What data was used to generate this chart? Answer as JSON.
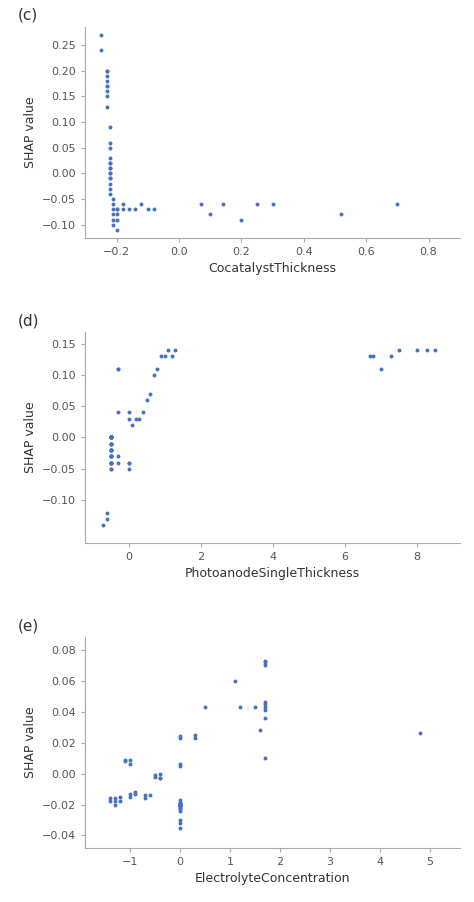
{
  "plot_c": {
    "label": "(c)",
    "xlabel": "CocatalystThickness",
    "ylabel": "SHAP value",
    "xlim": [
      -0.3,
      0.9
    ],
    "ylim": [
      -0.125,
      0.285
    ],
    "xticks": [
      -0.2,
      0.0,
      0.2,
      0.4,
      0.6,
      0.8
    ],
    "yticks": [
      -0.1,
      -0.05,
      0.0,
      0.05,
      0.1,
      0.15,
      0.2,
      0.25
    ],
    "x": [
      -0.25,
      -0.25,
      -0.23,
      -0.23,
      -0.23,
      -0.23,
      -0.23,
      -0.23,
      -0.23,
      -0.23,
      -0.23,
      -0.22,
      -0.22,
      -0.22,
      -0.22,
      -0.22,
      -0.22,
      -0.22,
      -0.22,
      -0.22,
      -0.22,
      -0.22,
      -0.22,
      -0.22,
      -0.22,
      -0.22,
      -0.21,
      -0.21,
      -0.21,
      -0.21,
      -0.21,
      -0.21,
      -0.2,
      -0.2,
      -0.2,
      -0.2,
      -0.2,
      -0.18,
      -0.18,
      -0.16,
      -0.14,
      -0.12,
      -0.1,
      -0.08,
      0.07,
      0.1,
      0.14,
      0.2,
      0.25,
      0.3,
      0.52,
      0.7
    ],
    "y": [
      0.24,
      0.27,
      0.2,
      0.2,
      0.19,
      0.18,
      0.17,
      0.17,
      0.16,
      0.15,
      0.13,
      0.09,
      0.06,
      0.05,
      0.03,
      0.02,
      0.02,
      0.01,
      0.01,
      0.0,
      0.0,
      -0.01,
      -0.01,
      -0.02,
      -0.03,
      -0.04,
      -0.05,
      -0.06,
      -0.07,
      -0.08,
      -0.09,
      -0.1,
      -0.07,
      -0.07,
      -0.08,
      -0.09,
      -0.11,
      -0.06,
      -0.07,
      -0.07,
      -0.07,
      -0.06,
      -0.07,
      -0.07,
      -0.06,
      -0.08,
      -0.06,
      -0.09,
      -0.06,
      -0.06,
      -0.08,
      -0.06
    ],
    "dot_color": "#4472C4",
    "dot_size": 8
  },
  "plot_d": {
    "label": "(d)",
    "xlabel": "PhotoanodeSingleThickness",
    "ylabel": "SHAP value",
    "xlim": [
      -1.2,
      9.2
    ],
    "ylim": [
      -0.168,
      0.168
    ],
    "xticks": [
      0,
      2,
      4,
      6,
      8
    ],
    "yticks": [
      -0.1,
      -0.05,
      0.0,
      0.05,
      0.1,
      0.15
    ],
    "x": [
      -0.7,
      -0.6,
      -0.6,
      -0.5,
      -0.5,
      -0.5,
      -0.5,
      -0.5,
      -0.5,
      -0.5,
      -0.5,
      -0.5,
      -0.5,
      -0.5,
      -0.5,
      -0.5,
      -0.5,
      -0.5,
      -0.5,
      -0.5,
      -0.5,
      -0.5,
      -0.5,
      -0.5,
      -0.5,
      -0.5,
      -0.5,
      -0.5,
      -0.5,
      -0.5,
      -0.5,
      -0.5,
      -0.5,
      -0.3,
      -0.3,
      -0.3,
      -0.3,
      -0.3,
      0.0,
      0.0,
      0.0,
      0.0,
      0.0,
      0.1,
      0.2,
      0.3,
      0.4,
      0.5,
      0.6,
      0.7,
      0.8,
      0.9,
      1.0,
      1.1,
      1.2,
      1.3,
      6.7,
      6.8,
      7.0,
      7.3,
      7.5,
      8.0,
      8.3,
      8.5
    ],
    "y": [
      -0.14,
      -0.13,
      -0.12,
      -0.05,
      -0.05,
      -0.04,
      -0.04,
      -0.04,
      -0.04,
      -0.03,
      -0.03,
      -0.03,
      -0.03,
      -0.03,
      -0.02,
      -0.02,
      -0.02,
      -0.02,
      -0.02,
      -0.01,
      -0.01,
      -0.01,
      -0.01,
      0.0,
      0.0,
      0.0,
      0.0,
      0.0,
      0.0,
      0.0,
      0.0,
      0.0,
      0.0,
      -0.04,
      -0.03,
      0.04,
      0.11,
      0.11,
      -0.05,
      -0.04,
      -0.04,
      0.03,
      0.04,
      0.02,
      0.03,
      0.03,
      0.04,
      0.06,
      0.07,
      0.1,
      0.11,
      0.13,
      0.13,
      0.14,
      0.13,
      0.14,
      0.13,
      0.13,
      0.11,
      0.13,
      0.14,
      0.14,
      0.14,
      0.14
    ],
    "dot_color": "#4472C4",
    "dot_size": 8
  },
  "plot_e": {
    "label": "(e)",
    "xlabel": "ElectrolyteConcentration",
    "ylabel": "SHAP value",
    "xlim": [
      -1.9,
      5.6
    ],
    "ylim": [
      -0.048,
      0.088
    ],
    "xticks": [
      -1,
      0,
      1,
      2,
      3,
      4,
      5
    ],
    "yticks": [
      -0.04,
      -0.02,
      0.0,
      0.02,
      0.04,
      0.06,
      0.08
    ],
    "x": [
      -1.4,
      -1.4,
      -1.3,
      -1.3,
      -1.3,
      -1.2,
      -1.2,
      -1.1,
      -1.1,
      -1.0,
      -1.0,
      -1.0,
      -1.0,
      -0.9,
      -0.9,
      -0.7,
      -0.7,
      -0.6,
      -0.5,
      -0.5,
      -0.4,
      -0.4,
      -0.4,
      0.0,
      0.0,
      0.0,
      0.0,
      0.0,
      0.0,
      0.0,
      0.0,
      0.0,
      0.0,
      0.0,
      0.0,
      0.0,
      0.0,
      0.0,
      0.0,
      0.0,
      0.0,
      0.0,
      0.0,
      0.0,
      0.0,
      0.3,
      0.3,
      0.5,
      1.1,
      1.2,
      1.5,
      1.6,
      1.7,
      1.7,
      1.7,
      1.7,
      1.7,
      1.7,
      1.7,
      1.7,
      1.7,
      4.8
    ],
    "y": [
      -0.018,
      -0.016,
      -0.02,
      -0.018,
      -0.016,
      -0.018,
      -0.015,
      0.008,
      0.009,
      -0.013,
      -0.015,
      0.006,
      0.009,
      -0.013,
      -0.012,
      -0.016,
      -0.014,
      -0.014,
      -0.002,
      -0.001,
      -0.003,
      -0.003,
      0.0,
      -0.035,
      -0.032,
      -0.03,
      -0.024,
      -0.023,
      -0.022,
      -0.021,
      -0.021,
      -0.021,
      -0.02,
      -0.019,
      -0.019,
      -0.019,
      -0.017,
      0.005,
      0.006,
      0.023,
      0.024,
      -0.02,
      -0.02,
      -0.02,
      -0.02,
      0.023,
      0.025,
      0.043,
      0.06,
      0.043,
      0.043,
      0.028,
      0.036,
      0.041,
      0.043,
      0.045,
      0.046,
      0.072,
      0.073,
      0.07,
      0.01,
      0.026
    ],
    "dot_color": "#4472C4",
    "dot_size": 8
  },
  "background_color": "#ffffff",
  "spine_color": "#aaaaaa",
  "tick_color": "#555555",
  "label_color": "#333333",
  "tick_fontsize": 8,
  "axis_label_fontsize": 9,
  "panel_label_fontsize": 11,
  "figsize": [
    4.74,
    9.02
  ],
  "dpi": 100
}
